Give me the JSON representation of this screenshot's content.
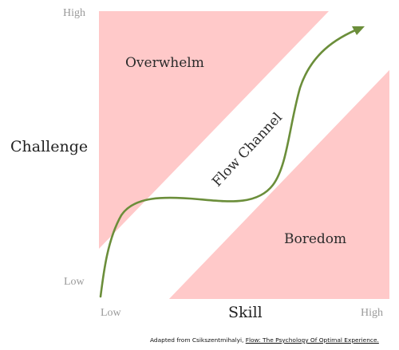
{
  "diagram": {
    "y_axis": {
      "title": "Challenge",
      "high": "High",
      "low": "Low"
    },
    "x_axis": {
      "title": "Skill",
      "low": "Low",
      "high": "High"
    },
    "zones": {
      "overwhelm": "Overwhelm",
      "flow_channel": "Flow Channel",
      "boredom": "Boredom"
    },
    "colors": {
      "zone_fill": "#ffc9c9",
      "channel_fill": "#ffffff",
      "curve": "#6b8e3a",
      "axis_text": "#9a9a9a"
    }
  },
  "credit": {
    "prefix": "Adapted from Csikszentmihalyi, ",
    "book": "Flow: The Psychology Of Optimal Experience."
  }
}
